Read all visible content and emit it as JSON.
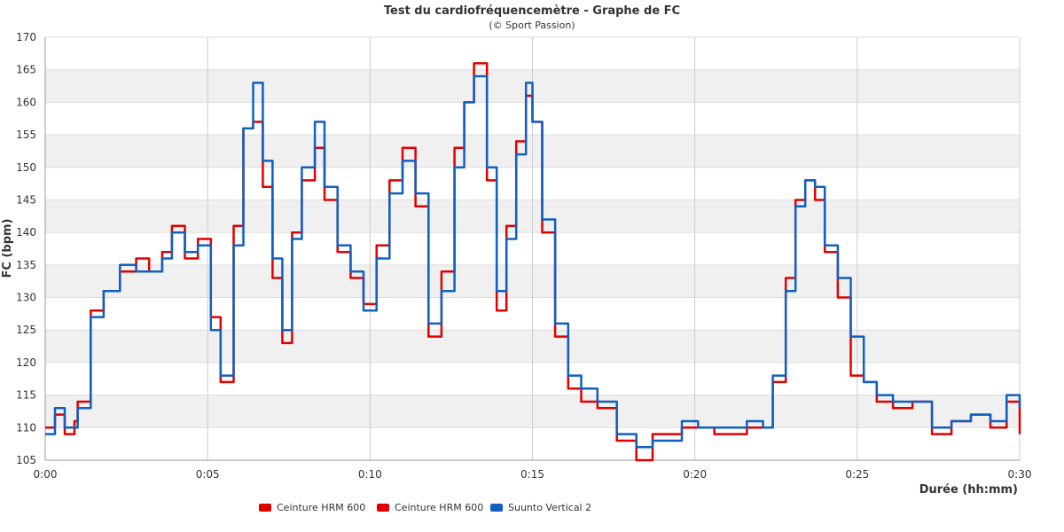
{
  "chart_data": {
    "type": "line",
    "title": "Test du cardiofréquencemètre - Graphe de FC",
    "subtitle": "(© Sport Passion)",
    "xlabel": "Durée (hh:mm)",
    "ylabel": "FC (bpm)",
    "xlim": [
      0,
      30
    ],
    "ylim": [
      105,
      170
    ],
    "x_ticks": [
      "0:00",
      "0:05",
      "0:10",
      "0:15",
      "0:20",
      "0:25",
      "0:30"
    ],
    "y_ticks": [
      105,
      110,
      115,
      120,
      125,
      130,
      135,
      140,
      145,
      150,
      155,
      160,
      165,
      170
    ],
    "grid": "alternating horizontal bands, vertical lines every 5 min",
    "legend_position": "bottom-left",
    "x_unit": "minutes",
    "series": [
      {
        "name": "Ceinture HRM 600",
        "color": "#e00000",
        "x": [
          0,
          0.3,
          0.6,
          0.9,
          1.0,
          1.4,
          1.8,
          2.3,
          2.8,
          3.2,
          3.6,
          3.9,
          4.3,
          4.7,
          5.1,
          5.4,
          5.8,
          6.1,
          6.4,
          6.7,
          7.0,
          7.3,
          7.6,
          7.9,
          8.3,
          8.6,
          9.0,
          9.4,
          9.8,
          10.2,
          10.6,
          11.0,
          11.4,
          11.8,
          12.2,
          12.6,
          12.9,
          13.2,
          13.6,
          13.9,
          14.2,
          14.5,
          14.8,
          15.0,
          15.3,
          15.7,
          16.1,
          16.5,
          17.0,
          17.6,
          18.2,
          18.7,
          19.2,
          19.6,
          20.1,
          20.6,
          21.1,
          21.6,
          22.1,
          22.4,
          22.8,
          23.1,
          23.4,
          23.7,
          24.0,
          24.4,
          24.8,
          25.2,
          25.6,
          26.1,
          26.7,
          27.3,
          27.9,
          28.5,
          29.1,
          29.6,
          30.0
        ],
        "values": [
          110,
          112,
          109,
          111,
          114,
          128,
          131,
          134,
          136,
          134,
          137,
          141,
          136,
          139,
          127,
          117,
          141,
          156,
          157,
          147,
          133,
          123,
          140,
          148,
          153,
          145,
          137,
          133,
          129,
          138,
          148,
          153,
          144,
          124,
          134,
          153,
          160,
          166,
          148,
          128,
          141,
          154,
          161,
          157,
          140,
          124,
          116,
          114,
          113,
          108,
          105,
          109,
          109,
          110,
          110,
          109,
          109,
          110,
          110,
          117,
          133,
          145,
          148,
          145,
          137,
          130,
          118,
          117,
          114,
          113,
          114,
          109,
          111,
          112,
          110,
          114,
          109
        ]
      },
      {
        "name": "Ceinture HRM 600",
        "color": "#e00000",
        "x": [],
        "values": []
      },
      {
        "name": "Suunto Vertical 2",
        "color": "#1060c0",
        "x": [
          0,
          0.3,
          0.6,
          0.9,
          1.0,
          1.4,
          1.8,
          2.3,
          2.8,
          3.2,
          3.6,
          3.9,
          4.3,
          4.7,
          5.1,
          5.4,
          5.8,
          6.1,
          6.4,
          6.7,
          7.0,
          7.3,
          7.6,
          7.9,
          8.3,
          8.6,
          9.0,
          9.4,
          9.8,
          10.2,
          10.6,
          11.0,
          11.4,
          11.8,
          12.2,
          12.6,
          12.9,
          13.2,
          13.6,
          13.9,
          14.2,
          14.5,
          14.8,
          15.0,
          15.3,
          15.7,
          16.1,
          16.5,
          17.0,
          17.6,
          18.2,
          18.7,
          19.2,
          19.6,
          20.1,
          20.6,
          21.1,
          21.6,
          22.1,
          22.4,
          22.8,
          23.1,
          23.4,
          23.7,
          24.0,
          24.4,
          24.8,
          25.2,
          25.6,
          26.1,
          26.7,
          27.3,
          27.9,
          28.5,
          29.1,
          29.6,
          30.0
        ],
        "values": [
          109,
          113,
          110,
          110,
          113,
          127,
          131,
          135,
          134,
          134,
          136,
          140,
          137,
          138,
          125,
          118,
          138,
          156,
          163,
          151,
          136,
          125,
          139,
          150,
          157,
          147,
          138,
          134,
          128,
          136,
          146,
          151,
          146,
          126,
          131,
          150,
          160,
          164,
          150,
          131,
          139,
          152,
          163,
          157,
          142,
          126,
          118,
          116,
          114,
          109,
          107,
          108,
          108,
          111,
          110,
          110,
          110,
          111,
          110,
          118,
          131,
          144,
          148,
          147,
          138,
          133,
          124,
          117,
          115,
          114,
          114,
          110,
          111,
          112,
          111,
          115,
          113
        ]
      }
    ],
    "legend": [
      "Ceinture HRM 600",
      "Ceinture HRM 600",
      "Suunto Vertical 2"
    ]
  }
}
